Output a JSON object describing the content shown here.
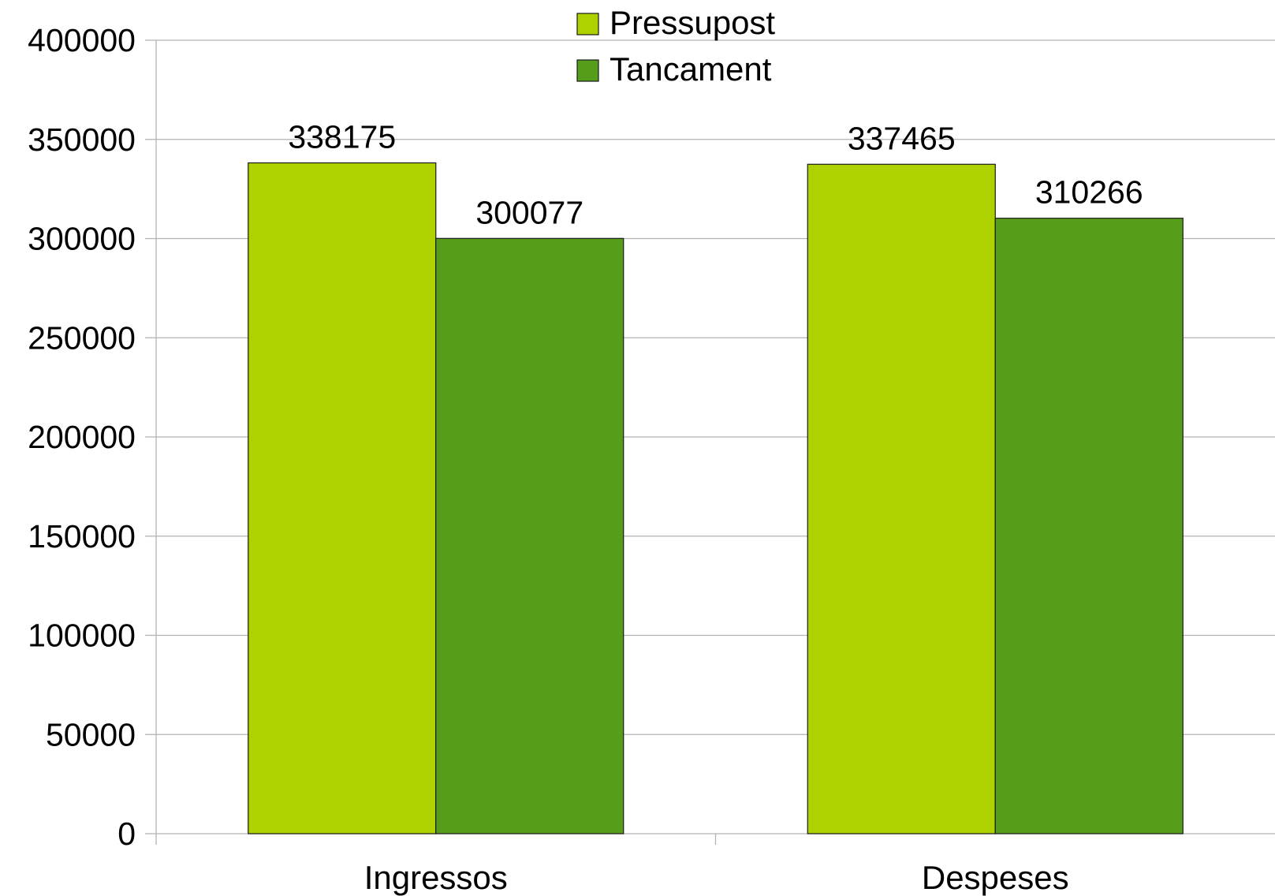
{
  "chart_data": {
    "type": "bar",
    "title": "",
    "xlabel": "",
    "ylabel": "",
    "categories": [
      "Ingressos",
      "Despeses"
    ],
    "series": [
      {
        "name": "Pressupost",
        "values": [
          338175,
          337465
        ],
        "color": "#aed100"
      },
      {
        "name": "Tancament",
        "values": [
          300077,
          310266
        ],
        "color": "#579d1c"
      }
    ],
    "ylim": [
      0,
      400000
    ],
    "yticks": [
      0,
      50000,
      100000,
      150000,
      200000,
      250000,
      300000,
      350000,
      400000
    ],
    "grid": true,
    "grid_color": "#b3b3b3",
    "legend_position": "top-center",
    "data_labels": true
  }
}
